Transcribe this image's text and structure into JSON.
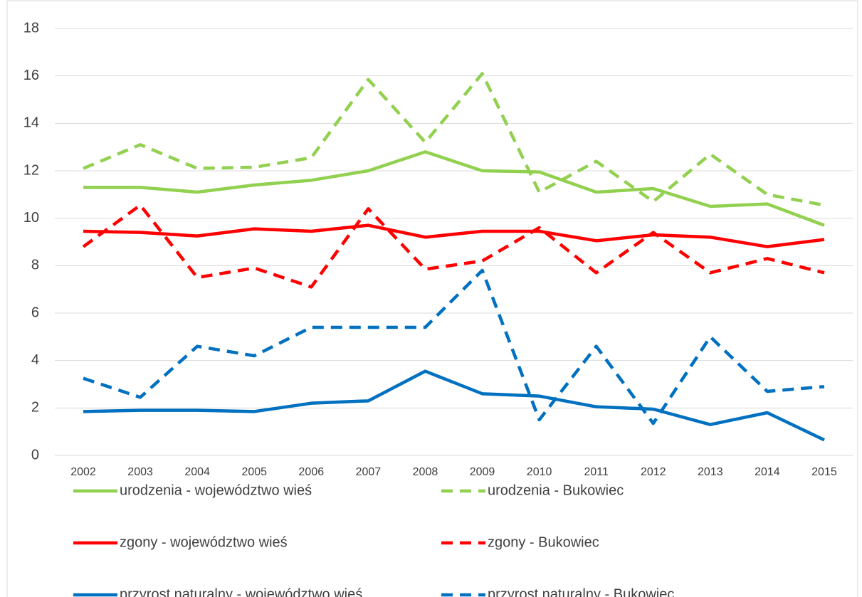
{
  "chart_data": {
    "type": "line",
    "categories": [
      "2002",
      "2003",
      "2004",
      "2005",
      "2006",
      "2007",
      "2008",
      "2009",
      "2010",
      "2011",
      "2012",
      "2013",
      "2014",
      "2015"
    ],
    "ylim": [
      0,
      18
    ],
    "yticks": [
      0,
      2,
      4,
      6,
      8,
      10,
      12,
      14,
      16,
      18
    ],
    "grid": true,
    "legend": "bottom",
    "series": [
      {
        "name": "urodzenia - województwo wieś",
        "color": "#92d050",
        "style": "solid",
        "values": [
          11.3,
          11.3,
          11.1,
          11.4,
          11.6,
          12.0,
          12.8,
          12.0,
          11.95,
          11.1,
          11.25,
          10.5,
          10.6,
          9.7
        ]
      },
      {
        "name": "urodzenia - Bukowiec",
        "color": "#92d050",
        "style": "dashed",
        "values": [
          12.1,
          13.1,
          12.1,
          12.15,
          12.55,
          15.85,
          13.2,
          16.1,
          11.1,
          12.4,
          10.7,
          12.7,
          11.0,
          10.55
        ]
      },
      {
        "name": "zgony - województwo wieś",
        "color": "#ff0000",
        "style": "solid",
        "values": [
          9.45,
          9.4,
          9.25,
          9.55,
          9.45,
          9.7,
          9.2,
          9.45,
          9.45,
          9.05,
          9.3,
          9.2,
          8.8,
          9.1
        ]
      },
      {
        "name": "zgony - Bukowiec",
        "color": "#ff0000",
        "style": "dashed",
        "values": [
          8.8,
          10.55,
          7.5,
          7.9,
          7.1,
          10.4,
          7.85,
          8.2,
          9.6,
          7.7,
          9.4,
          7.7,
          8.3,
          7.7
        ]
      },
      {
        "name": "przyrost naturalny - województwo wieś",
        "color": "#0070c0",
        "style": "solid",
        "values": [
          1.85,
          1.9,
          1.9,
          1.85,
          2.2,
          2.3,
          3.55,
          2.6,
          2.5,
          2.05,
          1.95,
          1.3,
          1.8,
          0.65
        ]
      },
      {
        "name": "przyrost naturalny - Bukowiec",
        "color": "#0070c0",
        "style": "dashed",
        "values": [
          3.25,
          2.45,
          4.6,
          4.2,
          5.4,
          5.4,
          5.4,
          7.8,
          1.5,
          4.6,
          1.35,
          5.0,
          2.7,
          2.9
        ]
      }
    ]
  }
}
